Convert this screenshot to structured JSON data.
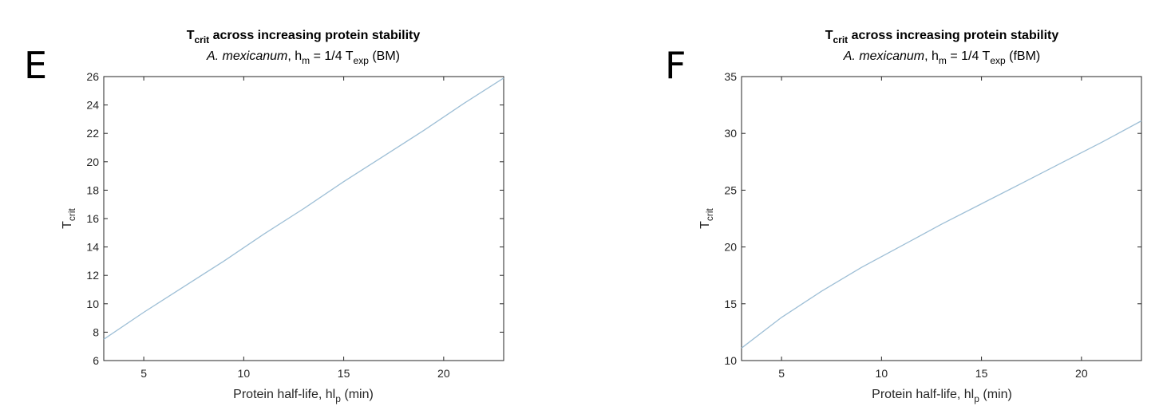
{
  "chart_data": [
    {
      "type": "line",
      "panel_label": "E",
      "title": {
        "main": "T",
        "sub": "crit",
        "rest": " across increasing protein stability"
      },
      "subtitle": {
        "species": "A. mexicanum",
        "after_species": ", h",
        "h_sub": "m",
        "mid": " = 1/4 T",
        "t_sub": "exp",
        "tail": " (BM)"
      },
      "xlabel": {
        "main": "Protein half-life, hl",
        "sub": "p",
        "tail": " (min)"
      },
      "ylabel": {
        "main": "T",
        "sub": "crit"
      },
      "xlim": [
        3,
        23
      ],
      "ylim": [
        6,
        26
      ],
      "xticks": [
        5,
        10,
        15,
        20
      ],
      "yticks": [
        6,
        8,
        10,
        12,
        14,
        16,
        18,
        20,
        22,
        24,
        26
      ],
      "series": [
        {
          "color": "#9ebfd6",
          "x": [
            3,
            5,
            7,
            9,
            11,
            13,
            15,
            17,
            19,
            21,
            23
          ],
          "y": [
            7.5,
            9.4,
            11.2,
            13.0,
            14.9,
            16.7,
            18.6,
            20.4,
            22.2,
            24.1,
            25.9
          ]
        }
      ],
      "grid": false
    },
    {
      "type": "line",
      "panel_label": "F",
      "title": {
        "main": "T",
        "sub": "crit",
        "rest": " across increasing protein stability"
      },
      "subtitle": {
        "species": "A. mexicanum",
        "after_species": ", h",
        "h_sub": "m",
        "mid": " = 1/4 T",
        "t_sub": "exp",
        "tail": " (fBM)"
      },
      "xlabel": {
        "main": "Protein half-life, hl",
        "sub": "p",
        "tail": " (min)"
      },
      "ylabel": {
        "main": "T",
        "sub": "crit"
      },
      "xlim": [
        3,
        23
      ],
      "ylim": [
        10,
        35
      ],
      "xticks": [
        5,
        10,
        15,
        20
      ],
      "yticks": [
        10,
        15,
        20,
        25,
        30,
        35
      ],
      "series": [
        {
          "color": "#9ebfd6",
          "x": [
            3,
            5,
            7,
            9,
            11,
            13,
            15,
            17,
            19,
            21,
            23
          ],
          "y": [
            11.1,
            13.8,
            16.1,
            18.2,
            20.1,
            22.0,
            23.8,
            25.6,
            27.4,
            29.2,
            31.1
          ]
        }
      ],
      "grid": false
    }
  ]
}
